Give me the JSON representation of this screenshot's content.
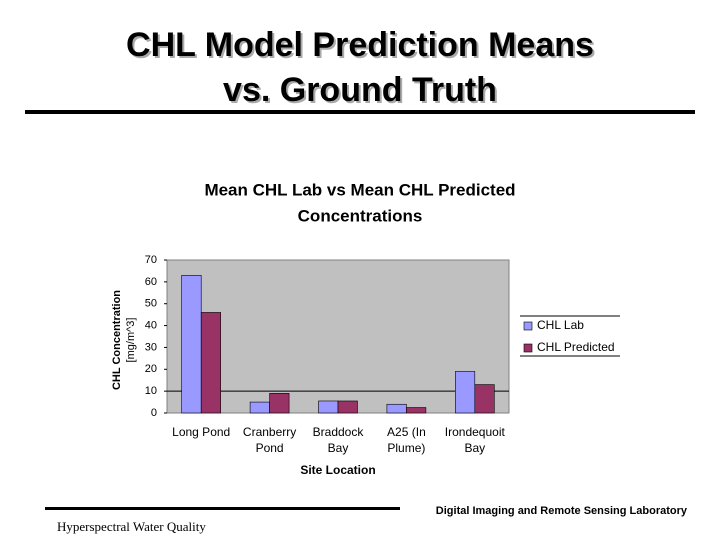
{
  "slide": {
    "title": [
      "CHL Model Prediction Means",
      "vs. Ground Truth"
    ],
    "lab": "Digital Imaging and Remote Sensing Laboratory",
    "footer": "Hyperspectral Water Quality"
  },
  "chart_data": {
    "type": "bar",
    "title": [
      "Mean CHL Lab vs Mean CHL Predicted",
      "Concentrations"
    ],
    "x_label": "Site Location",
    "y_label": [
      "CHL Concentration",
      "[mg/m^3]"
    ],
    "categories": [
      [
        "Long Pond"
      ],
      [
        "Cranberry",
        "Pond"
      ],
      [
        "Braddock",
        "Bay"
      ],
      [
        "A25 (In",
        "Plume)"
      ],
      [
        "Irondequoit",
        "Bay"
      ]
    ],
    "series": [
      {
        "name": "CHL Lab",
        "color": "#9999ff",
        "values": [
          63,
          5,
          5.5,
          4,
          19
        ]
      },
      {
        "name": "CHL Predicted",
        "color": "#993366",
        "values": [
          46,
          9,
          5.5,
          2.5,
          13
        ]
      }
    ],
    "ylim": [
      0,
      70
    ],
    "yticks": [
      0,
      10,
      20,
      30,
      40,
      50,
      60,
      70
    ],
    "reference_line": 10,
    "legend": "right"
  }
}
